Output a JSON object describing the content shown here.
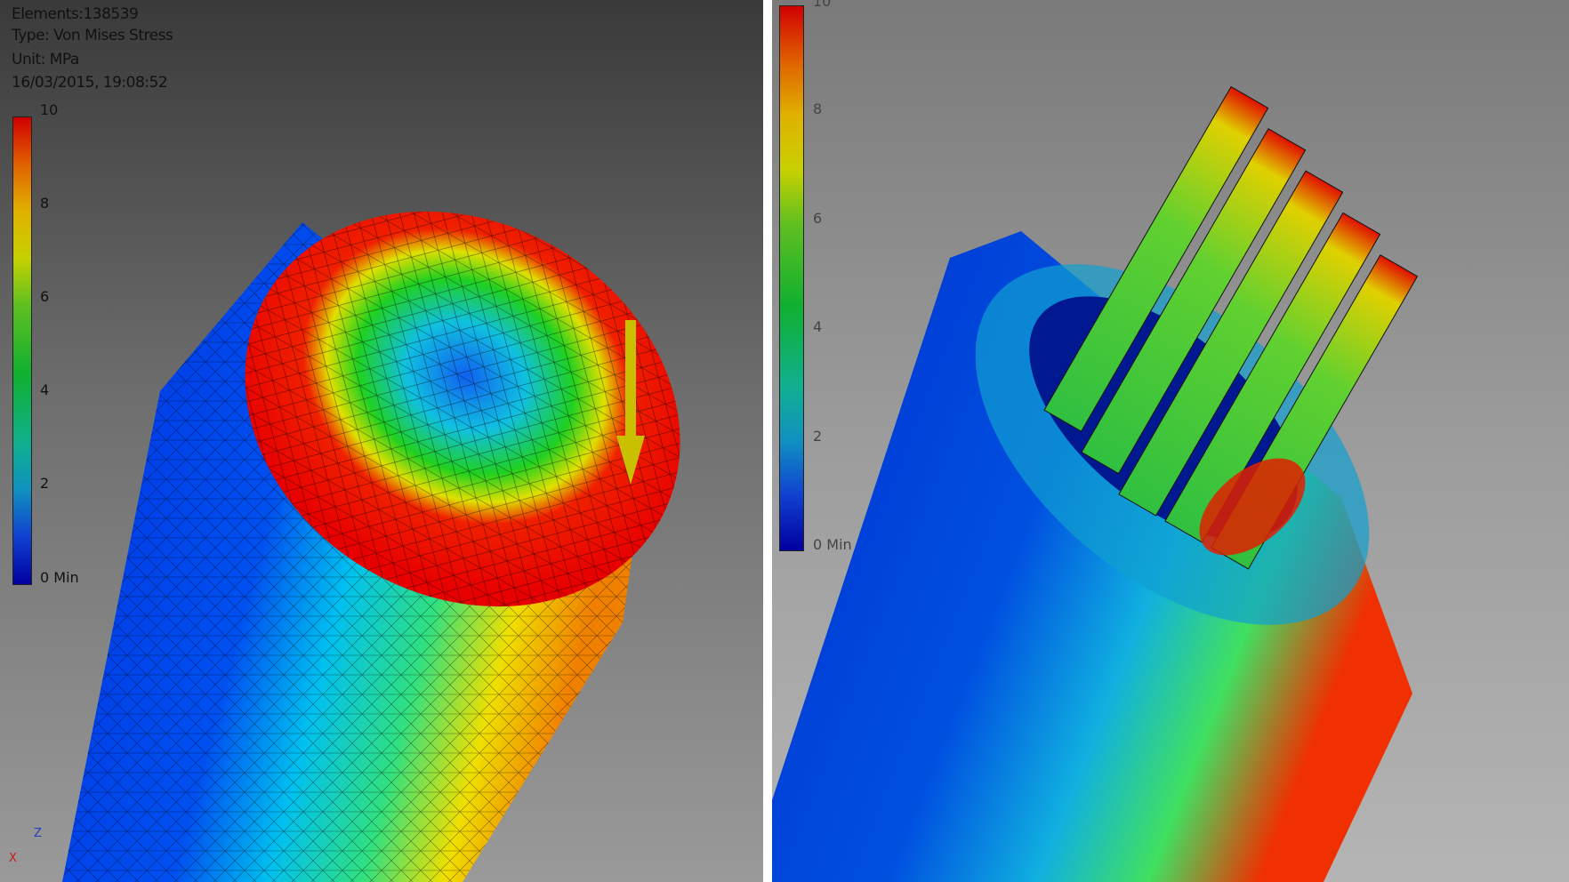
{
  "left_panel": {
    "info": {
      "elements": "Elements:138539",
      "type": "Type: Von Mises Stress",
      "unit": "Unit: MPa",
      "timestamp": "16/03/2015, 19:08:52"
    },
    "legend": {
      "labels": [
        "10",
        "8",
        "6",
        "4",
        "2",
        "0 Min"
      ]
    },
    "axis_triad": {
      "z": "Z",
      "x": "X"
    }
  },
  "right_panel": {
    "legend": {
      "labels": [
        "10",
        "8",
        "6",
        "4",
        "2",
        "0 Min"
      ]
    }
  },
  "colors": {
    "max": "#e00000",
    "mid": "#20c020",
    "min": "#0020d0"
  }
}
